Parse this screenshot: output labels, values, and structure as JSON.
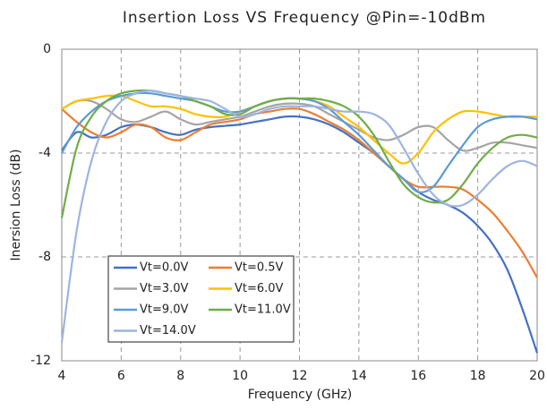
{
  "chart_data": {
    "type": "line",
    "title": "Insertion Loss VS Frequency @Pin=-10dBm",
    "x_label": "Frequency (GHz)",
    "y_label": "Inersion Loss (dB)",
    "x": [
      4,
      4.5,
      5,
      5.5,
      6,
      6.5,
      7,
      7.5,
      8,
      8.5,
      9,
      9.5,
      10,
      10.5,
      11,
      11.5,
      12,
      12.5,
      13,
      13.5,
      14,
      14.5,
      15,
      15.5,
      16,
      16.5,
      17,
      17.5,
      18,
      18.5,
      19,
      19.5,
      20
    ],
    "xlim": [
      4,
      20
    ],
    "xticks": [
      4,
      6,
      8,
      10,
      12,
      14,
      16,
      18,
      20
    ],
    "ylim": [
      -12,
      0
    ],
    "yticks": [
      0,
      -4,
      -8,
      -12
    ],
    "grid": true,
    "legend_position": "lower left",
    "series": [
      {
        "name": "Vt=0.0V",
        "color": "#4472c4",
        "values": [
          -3.9,
          -3.2,
          -3.4,
          -3.3,
          -3.0,
          -2.9,
          -3.0,
          -3.2,
          -3.3,
          -3.1,
          -3.0,
          -2.95,
          -2.9,
          -2.8,
          -2.7,
          -2.6,
          -2.6,
          -2.7,
          -2.9,
          -3.2,
          -3.6,
          -4.0,
          -4.5,
          -5.0,
          -5.5,
          -5.8,
          -6.0,
          -6.3,
          -6.8,
          -7.5,
          -8.5,
          -10.0,
          -11.7
        ]
      },
      {
        "name": "Vt=0.5V",
        "color": "#ed7d31",
        "values": [
          -2.3,
          -2.8,
          -3.2,
          -3.4,
          -3.2,
          -2.9,
          -3.0,
          -3.4,
          -3.5,
          -3.2,
          -2.9,
          -2.8,
          -2.7,
          -2.5,
          -2.4,
          -2.3,
          -2.3,
          -2.5,
          -2.8,
          -3.1,
          -3.5,
          -4.0,
          -4.5,
          -5.0,
          -5.3,
          -5.3,
          -5.3,
          -5.4,
          -5.8,
          -6.3,
          -7.0,
          -7.8,
          -8.8
        ]
      },
      {
        "name": "Vt=3.0V",
        "color": "#a5a5a5",
        "values": [
          -2.3,
          -2.0,
          -2.0,
          -2.3,
          -2.7,
          -2.8,
          -2.6,
          -2.4,
          -2.7,
          -2.9,
          -2.8,
          -2.7,
          -2.6,
          -2.4,
          -2.2,
          -2.1,
          -2.1,
          -2.2,
          -2.5,
          -2.8,
          -3.1,
          -3.4,
          -3.5,
          -3.3,
          -3.0,
          -3.0,
          -3.5,
          -3.9,
          -3.8,
          -3.6,
          -3.6,
          -3.7,
          -3.8
        ]
      },
      {
        "name": "Vt=6.0V",
        "color": "#ffc000",
        "values": [
          -2.3,
          -2.0,
          -1.9,
          -1.8,
          -1.8,
          -2.0,
          -2.2,
          -2.2,
          -2.3,
          -2.5,
          -2.6,
          -2.6,
          -2.4,
          -2.2,
          -2.0,
          -1.9,
          -1.9,
          -2.0,
          -2.2,
          -2.6,
          -3.0,
          -3.5,
          -4.0,
          -4.4,
          -4.0,
          -3.2,
          -2.7,
          -2.4,
          -2.4,
          -2.5,
          -2.6,
          -2.6,
          -2.6
        ]
      },
      {
        "name": "Vt=9.0V",
        "color": "#5b9bd5",
        "values": [
          -4.0,
          -3.0,
          -2.4,
          -2.0,
          -1.8,
          -1.7,
          -1.7,
          -1.8,
          -1.9,
          -2.0,
          -2.2,
          -2.4,
          -2.4,
          -2.2,
          -2.0,
          -1.9,
          -1.9,
          -2.0,
          -2.3,
          -2.8,
          -3.3,
          -3.9,
          -4.5,
          -5.0,
          -5.5,
          -5.3,
          -4.5,
          -3.7,
          -3.0,
          -2.7,
          -2.6,
          -2.6,
          -2.7
        ]
      },
      {
        "name": "Vt=11.0V",
        "color": "#70ad47",
        "values": [
          -6.5,
          -3.8,
          -2.6,
          -2.0,
          -1.7,
          -1.6,
          -1.6,
          -1.7,
          -1.8,
          -2.0,
          -2.2,
          -2.5,
          -2.5,
          -2.2,
          -2.0,
          -1.9,
          -1.9,
          -1.9,
          -2.0,
          -2.2,
          -2.6,
          -3.3,
          -4.3,
          -5.2,
          -5.7,
          -5.9,
          -5.8,
          -5.2,
          -4.4,
          -3.8,
          -3.4,
          -3.3,
          -3.4
        ]
      },
      {
        "name": "Vt=14.0V",
        "color": "#9db4e0",
        "values": [
          -11.3,
          -7.0,
          -4.3,
          -2.8,
          -2.0,
          -1.7,
          -1.6,
          -1.7,
          -1.8,
          -1.9,
          -2.0,
          -2.3,
          -2.6,
          -2.5,
          -2.3,
          -2.2,
          -2.2,
          -2.2,
          -2.3,
          -2.4,
          -2.4,
          -2.5,
          -2.9,
          -3.8,
          -4.8,
          -5.6,
          -6.0,
          -6.0,
          -5.6,
          -5.0,
          -4.5,
          -4.3,
          -4.5
        ]
      }
    ]
  }
}
